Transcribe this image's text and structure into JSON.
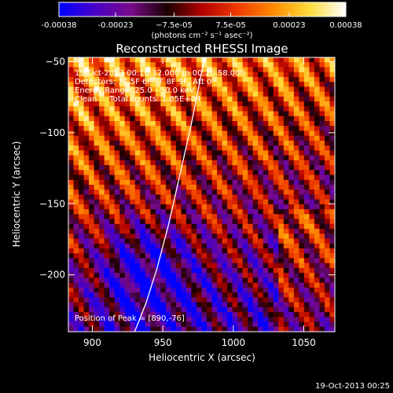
{
  "chart_data": {
    "type": "heatmap",
    "title": "Reconstructed RHESSI Image",
    "xlabel": "Heliocentric X (arcsec)",
    "ylabel": "Heliocentric Y (arcsec)",
    "xlim": [
      883,
      1072
    ],
    "ylim": [
      -240,
      -47
    ],
    "x_ticks": [
      900,
      950,
      1000,
      1050
    ],
    "y_ticks": [
      -200,
      -150,
      -100,
      -50
    ],
    "colorbar": {
      "min": -0.00038,
      "max": 0.00038,
      "tick_values": [
        -0.00038,
        -0.00023,
        -7.5e-05,
        7.5e-05,
        0.00023,
        0.00038
      ],
      "tick_labels": [
        "-0.00038",
        "-0.00023",
        "−7.5e-05",
        "7.5e-05",
        "0.00023",
        "0.00038"
      ],
      "unit_text": "(photons cm⁻² s⁻¹ asec⁻²)",
      "colormap": [
        "#0000ff",
        "#4800c8",
        "#7a0a8c",
        "#1a0000",
        "#b40000",
        "#f03c00",
        "#ff8c00",
        "#ffdc3c",
        "#ffffff"
      ]
    },
    "annotations": [
      "19-Oct-2013 00:16:32.000 to 00:20:58.000",
      "Detectors: 3F 5F 6F 7F 8F 9F, Att 0",
      "Energy Range: 25.0 - 50.0 keV",
      "Clean     Total counts: 1.85E+04"
    ],
    "peak_text": "Position of Peak = [890,-76]",
    "peak": [
      890,
      -76
    ],
    "limb_curve": [
      [
        930,
        -240
      ],
      [
        938,
        -220
      ],
      [
        946,
        -195
      ],
      [
        954,
        -165
      ],
      [
        962,
        -130
      ],
      [
        970,
        -95
      ],
      [
        977,
        -60
      ],
      [
        980,
        -47
      ]
    ]
  },
  "footer": {
    "timestamp": "19-Oct-2013 00:25"
  }
}
